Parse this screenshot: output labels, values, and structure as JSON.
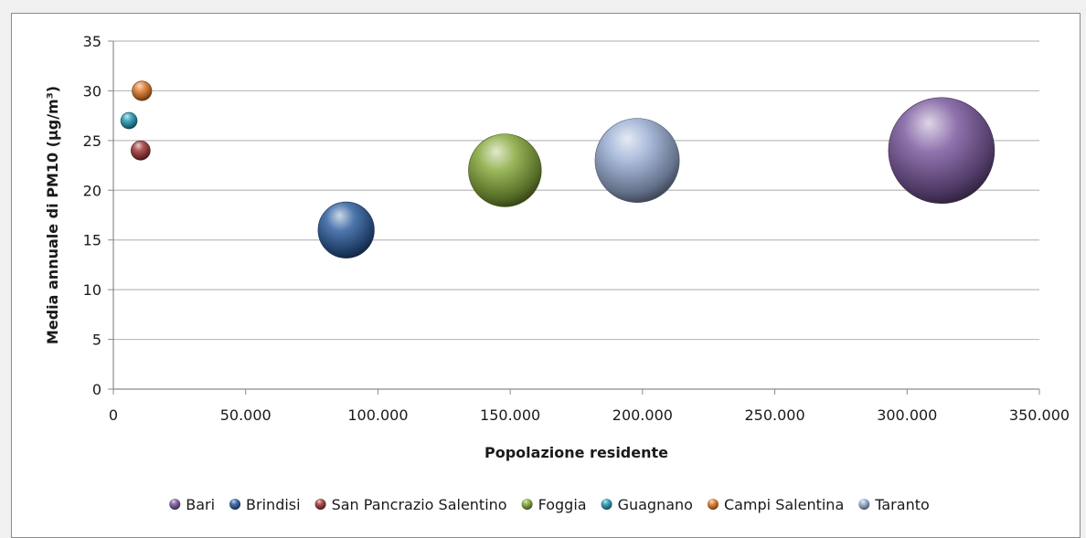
{
  "chart_data": {
    "type": "bubble",
    "xlabel": "Popolazione residente",
    "ylabel": "Media annuale di PM10 (µg/m³)",
    "xlim": [
      0,
      350000
    ],
    "ylim": [
      0,
      35
    ],
    "x_ticks": [
      0,
      50000,
      100000,
      150000,
      200000,
      250000,
      300000,
      350000
    ],
    "x_tick_labels": [
      "0",
      "50.000",
      "100.000",
      "150.000",
      "200.000",
      "250.000",
      "300.000",
      "350.000"
    ],
    "y_ticks": [
      0,
      5,
      10,
      15,
      20,
      25,
      30,
      35
    ],
    "y_tick_labels": [
      "0",
      "5",
      "10",
      "15",
      "20",
      "25",
      "30",
      "35"
    ],
    "grid": true,
    "legend_position": "bottom",
    "series": [
      {
        "name": "Bari",
        "x": 313000,
        "y": 24,
        "size": 313000,
        "color": "#7b5a9e"
      },
      {
        "name": "Brindisi",
        "x": 88000,
        "y": 16,
        "size": 88000,
        "color": "#2f5f9e"
      },
      {
        "name": "San Pancrazio Salentino",
        "x": 10300,
        "y": 24,
        "size": 10300,
        "color": "#a33b3b"
      },
      {
        "name": "Foggia",
        "x": 148000,
        "y": 22,
        "size": 148000,
        "color": "#86a83c"
      },
      {
        "name": "Guagnano",
        "x": 5900,
        "y": 27,
        "size": 5900,
        "color": "#2a9bb5"
      },
      {
        "name": "Campi Salentina",
        "x": 10800,
        "y": 30,
        "size": 10800,
        "color": "#e07b2c"
      },
      {
        "name": "Taranto",
        "x": 198000,
        "y": 23,
        "size": 198000,
        "color": "#9aaed4"
      }
    ]
  }
}
